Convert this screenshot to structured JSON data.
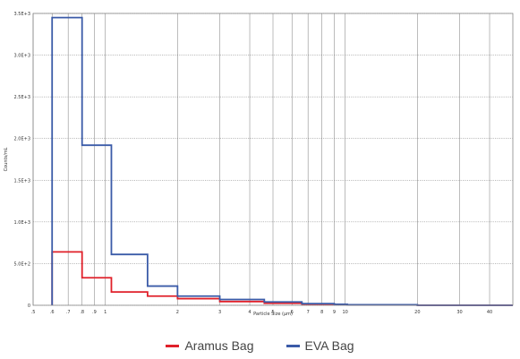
{
  "chart_data": {
    "type": "step",
    "title": "",
    "xlabel": "Particle Size (µm)",
    "ylabel": "Counts/mL",
    "x_scale": "log",
    "xlim": [
      0.5,
      50
    ],
    "ylim": [
      0,
      3500
    ],
    "grid": true,
    "legend_position": "bottom-center",
    "x_ticks": [
      0.5,
      0.6,
      0.7,
      0.8,
      0.9,
      1,
      2,
      3,
      4,
      5,
      6,
      7,
      8,
      9,
      10,
      20,
      30,
      40
    ],
    "x_tick_labels": [
      ".5",
      ".6",
      ".7",
      ".8",
      ".9",
      "1",
      "2",
      "3",
      "4",
      "5",
      "6",
      "7",
      "8",
      "9",
      "10",
      "20",
      "30",
      "40"
    ],
    "y_ticks": [
      0,
      500,
      1000,
      1500,
      2000,
      2500,
      3000,
      3500
    ],
    "y_tick_labels": [
      "0",
      "5.0E+2",
      "1.0E+3",
      "1.5E+3",
      "2.0E+3",
      "2.5E+3",
      "3.0E+3",
      "3.5E+3"
    ],
    "bin_edges": [
      0.6,
      0.8,
      1.06,
      1.5,
      2.0,
      3.0,
      4.6,
      6.6,
      9.0,
      10.2,
      20,
      50
    ],
    "series": [
      {
        "name": "Aramus Bag",
        "color": "#e0202a",
        "values": [
          640,
          330,
          160,
          110,
          80,
          45,
          25,
          15,
          10,
          5,
          0
        ]
      },
      {
        "name": "EVA Bag",
        "color": "#3b5ba8",
        "values": [
          3450,
          1920,
          610,
          230,
          110,
          70,
          40,
          20,
          12,
          6,
          0
        ]
      }
    ]
  }
}
